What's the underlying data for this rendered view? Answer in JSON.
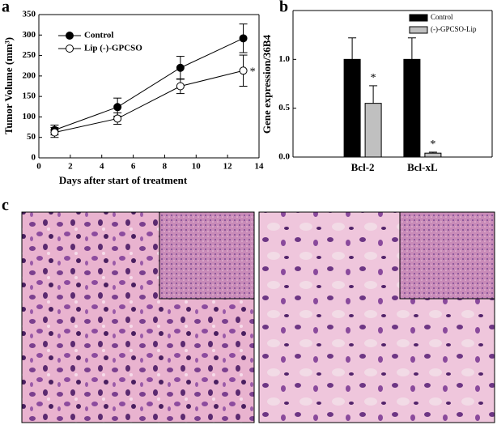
{
  "panel_labels": [
    "a",
    "b",
    "c"
  ],
  "chart_data": [
    {
      "type": "line",
      "x_label": "Days after start of treatment",
      "y_label": "Tumor Volume (mm³)",
      "x": [
        1,
        5,
        9,
        13
      ],
      "series": [
        {
          "name": "Control",
          "color": "#000000",
          "marker": "filled",
          "values": [
            68,
            124,
            220,
            292
          ],
          "errors": [
            12,
            22,
            28,
            35
          ]
        },
        {
          "name": "Lip (-)-GPCSO",
          "color": "#000000",
          "marker": "open",
          "values": [
            62,
            96,
            175,
            213
          ],
          "errors": [
            12,
            14,
            18,
            38
          ]
        }
      ],
      "xlim": [
        0,
        14
      ],
      "xticks": [
        0,
        2,
        4,
        6,
        8,
        10,
        12,
        14
      ],
      "ylim": [
        0,
        350
      ],
      "yticks": [
        0,
        50,
        100,
        150,
        200,
        250,
        300,
        350
      ],
      "annotations": [
        "*"
      ],
      "legend": "upper left"
    },
    {
      "type": "bar",
      "y_label": "Gene expression/36B4",
      "categories": [
        "Bcl-2",
        "Bcl-xL"
      ],
      "series": [
        {
          "name": "Control",
          "color": "#000000",
          "values": [
            1.0,
            1.0
          ],
          "errors": [
            0.22,
            0.22
          ]
        },
        {
          "name": "(-)-GPCSO-Lip",
          "color": "#c0c0c0",
          "values": [
            0.55,
            0.04
          ],
          "errors": [
            0.18,
            0.01
          ]
        }
      ],
      "ylim": [
        0,
        1.5
      ],
      "yticks": [
        {
          "value": 0,
          "label": "0.0"
        },
        0.5,
        {
          "value": 1,
          "label": "1.0"
        }
      ],
      "annotations": [
        "*",
        "*"
      ],
      "legend": "upper right"
    }
  ]
}
